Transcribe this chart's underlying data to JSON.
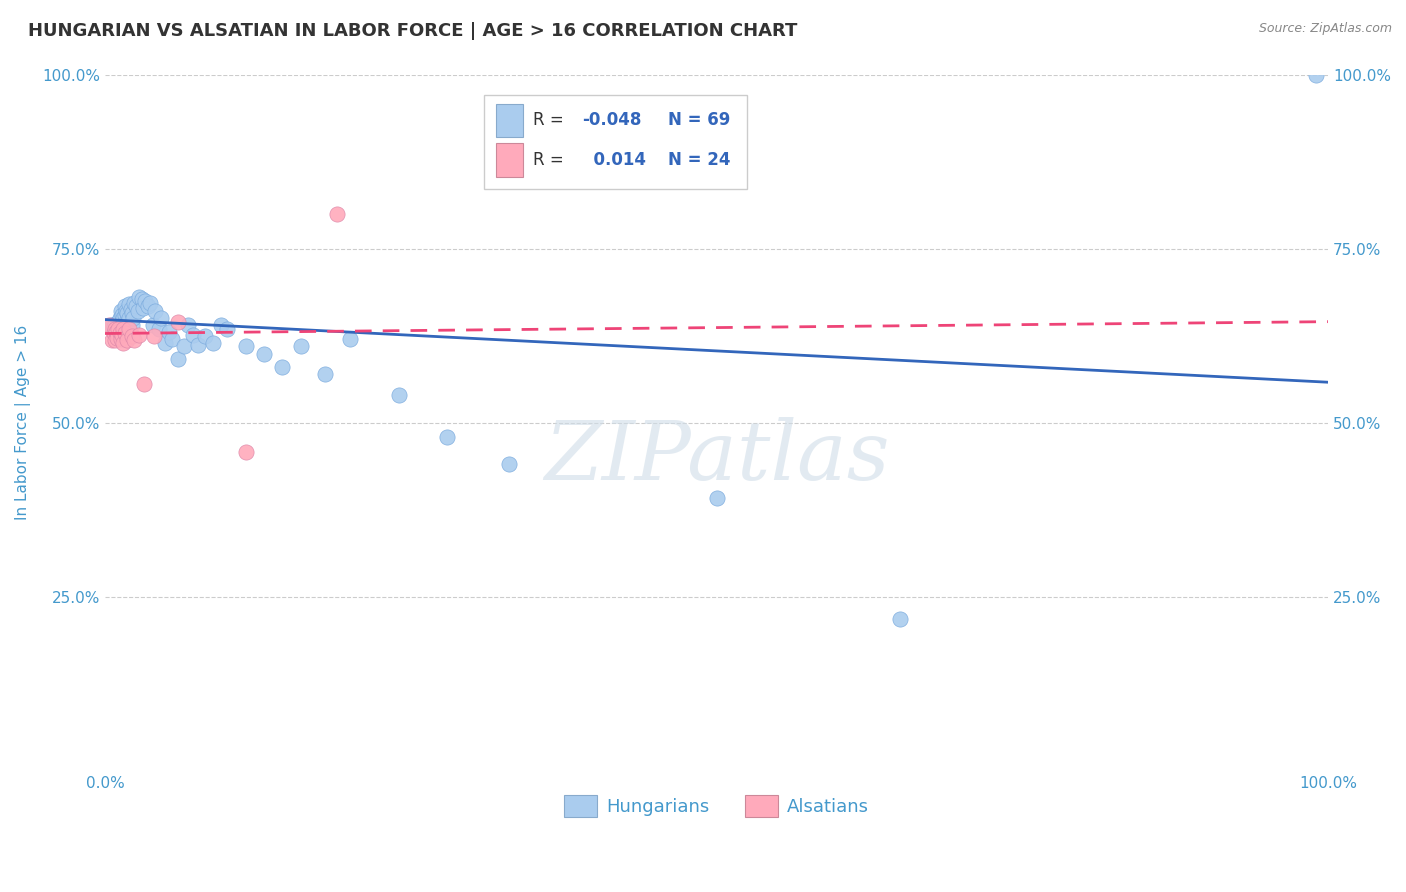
{
  "title": "HUNGARIAN VS ALSATIAN IN LABOR FORCE | AGE > 16 CORRELATION CHART",
  "source_text": "Source: ZipAtlas.com",
  "ylabel": "In Labor Force | Age > 16",
  "xlim": [
    0.0,
    1.0
  ],
  "ylim": [
    0.0,
    1.0
  ],
  "ytick_positions": [
    0.25,
    0.5,
    0.75,
    1.0
  ],
  "ytick_labels": [
    "25.0%",
    "50.0%",
    "75.0%",
    "100.0%"
  ],
  "xtick_positions": [
    0.0,
    1.0
  ],
  "xtick_labels": [
    "0.0%",
    "100.0%"
  ],
  "blue_color": "#aaccee",
  "pink_color": "#ffaabb",
  "blue_line_color": "#3366bb",
  "pink_line_color": "#ee4477",
  "legend_blue_label": "Hungarians",
  "legend_pink_label": "Alsatians",
  "R_blue": -0.048,
  "N_blue": 69,
  "R_pink": 0.014,
  "N_pink": 24,
  "blue_trend_x0": 0.0,
  "blue_trend_y0": 0.648,
  "blue_trend_x1": 1.0,
  "blue_trend_y1": 0.558,
  "pink_trend_x0": 0.0,
  "pink_trend_y0": 0.628,
  "pink_trend_x1": 1.0,
  "pink_trend_y1": 0.645,
  "blue_scatter_x": [
    0.005,
    0.007,
    0.008,
    0.008,
    0.009,
    0.01,
    0.01,
    0.01,
    0.011,
    0.012,
    0.012,
    0.013,
    0.013,
    0.014,
    0.014,
    0.015,
    0.015,
    0.015,
    0.016,
    0.016,
    0.016,
    0.017,
    0.017,
    0.018,
    0.018,
    0.019,
    0.02,
    0.02,
    0.021,
    0.022,
    0.022,
    0.023,
    0.024,
    0.025,
    0.027,
    0.028,
    0.03,
    0.031,
    0.033,
    0.035,
    0.037,
    0.039,
    0.041,
    0.044,
    0.046,
    0.049,
    0.052,
    0.055,
    0.06,
    0.065,
    0.068,
    0.072,
    0.076,
    0.082,
    0.088,
    0.095,
    0.1,
    0.115,
    0.13,
    0.145,
    0.16,
    0.18,
    0.2,
    0.24,
    0.28,
    0.33,
    0.5,
    0.65,
    0.99
  ],
  "blue_scatter_y": [
    0.64,
    0.638,
    0.625,
    0.642,
    0.628,
    0.635,
    0.633,
    0.62,
    0.645,
    0.65,
    0.638,
    0.66,
    0.635,
    0.655,
    0.63,
    0.65,
    0.64,
    0.628,
    0.668,
    0.655,
    0.635,
    0.66,
    0.645,
    0.658,
    0.63,
    0.645,
    0.67,
    0.65,
    0.663,
    0.658,
    0.64,
    0.65,
    0.672,
    0.668,
    0.66,
    0.68,
    0.678,
    0.665,
    0.675,
    0.668,
    0.672,
    0.64,
    0.66,
    0.635,
    0.65,
    0.615,
    0.63,
    0.62,
    0.592,
    0.61,
    0.64,
    0.626,
    0.612,
    0.625,
    0.615,
    0.64,
    0.635,
    0.61,
    0.598,
    0.58,
    0.61,
    0.57,
    0.62,
    0.54,
    0.48,
    0.44,
    0.392,
    0.218,
    1.0
  ],
  "pink_scatter_x": [
    0.003,
    0.006,
    0.007,
    0.008,
    0.008,
    0.009,
    0.01,
    0.011,
    0.012,
    0.013,
    0.014,
    0.015,
    0.015,
    0.016,
    0.018,
    0.02,
    0.022,
    0.024,
    0.028,
    0.032,
    0.04,
    0.06,
    0.115,
    0.19
  ],
  "pink_scatter_y": [
    0.64,
    0.618,
    0.628,
    0.618,
    0.635,
    0.63,
    0.622,
    0.635,
    0.628,
    0.62,
    0.626,
    0.635,
    0.615,
    0.628,
    0.618,
    0.635,
    0.625,
    0.618,
    0.626,
    0.556,
    0.625,
    0.645,
    0.458,
    0.8
  ],
  "watermark_color": "#d0dde8",
  "background_color": "#ffffff",
  "grid_color": "#cccccc",
  "tick_color": "#4499cc",
  "axis_label_color": "#4499cc",
  "title_color": "#333333"
}
